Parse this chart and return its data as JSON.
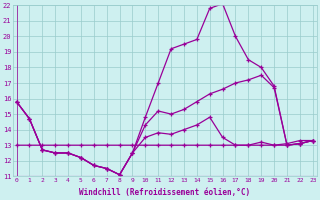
{
  "xlabel": "Windchill (Refroidissement éolien,°C)",
  "bg_color": "#cef0f0",
  "grid_color": "#99cccc",
  "line_color": "#990099",
  "xmin": 0,
  "xmax": 23,
  "ymin": 11,
  "ymax": 22,
  "series": [
    [
      15.8,
      14.7,
      12.7,
      12.5,
      12.5,
      12.2,
      11.7,
      11.5,
      11.1,
      12.5,
      13.5,
      13.8,
      13.7,
      14.0,
      14.3,
      14.8,
      13.5,
      13.0,
      13.0,
      13.2,
      13.0,
      13.1,
      13.3,
      13.3
    ],
    [
      15.8,
      14.7,
      12.7,
      12.5,
      12.5,
      12.2,
      11.7,
      11.5,
      11.1,
      12.5,
      14.8,
      17.0,
      19.2,
      19.5,
      19.8,
      21.8,
      22.1,
      20.0,
      18.5,
      18.0,
      16.8,
      13.0,
      13.1,
      13.3
    ],
    [
      15.8,
      14.7,
      12.7,
      12.5,
      12.5,
      12.2,
      11.7,
      11.5,
      11.1,
      12.5,
      14.3,
      15.2,
      15.0,
      15.3,
      15.8,
      16.3,
      16.6,
      17.0,
      17.2,
      17.5,
      16.7,
      13.0,
      13.1,
      13.3
    ],
    [
      13.0,
      13.0,
      13.0,
      13.0,
      13.0,
      13.0,
      13.0,
      13.0,
      13.0,
      13.0,
      13.0,
      13.0,
      13.0,
      13.0,
      13.0,
      13.0,
      13.0,
      13.0,
      13.0,
      13.0,
      13.0,
      13.0,
      13.1,
      13.3
    ]
  ]
}
